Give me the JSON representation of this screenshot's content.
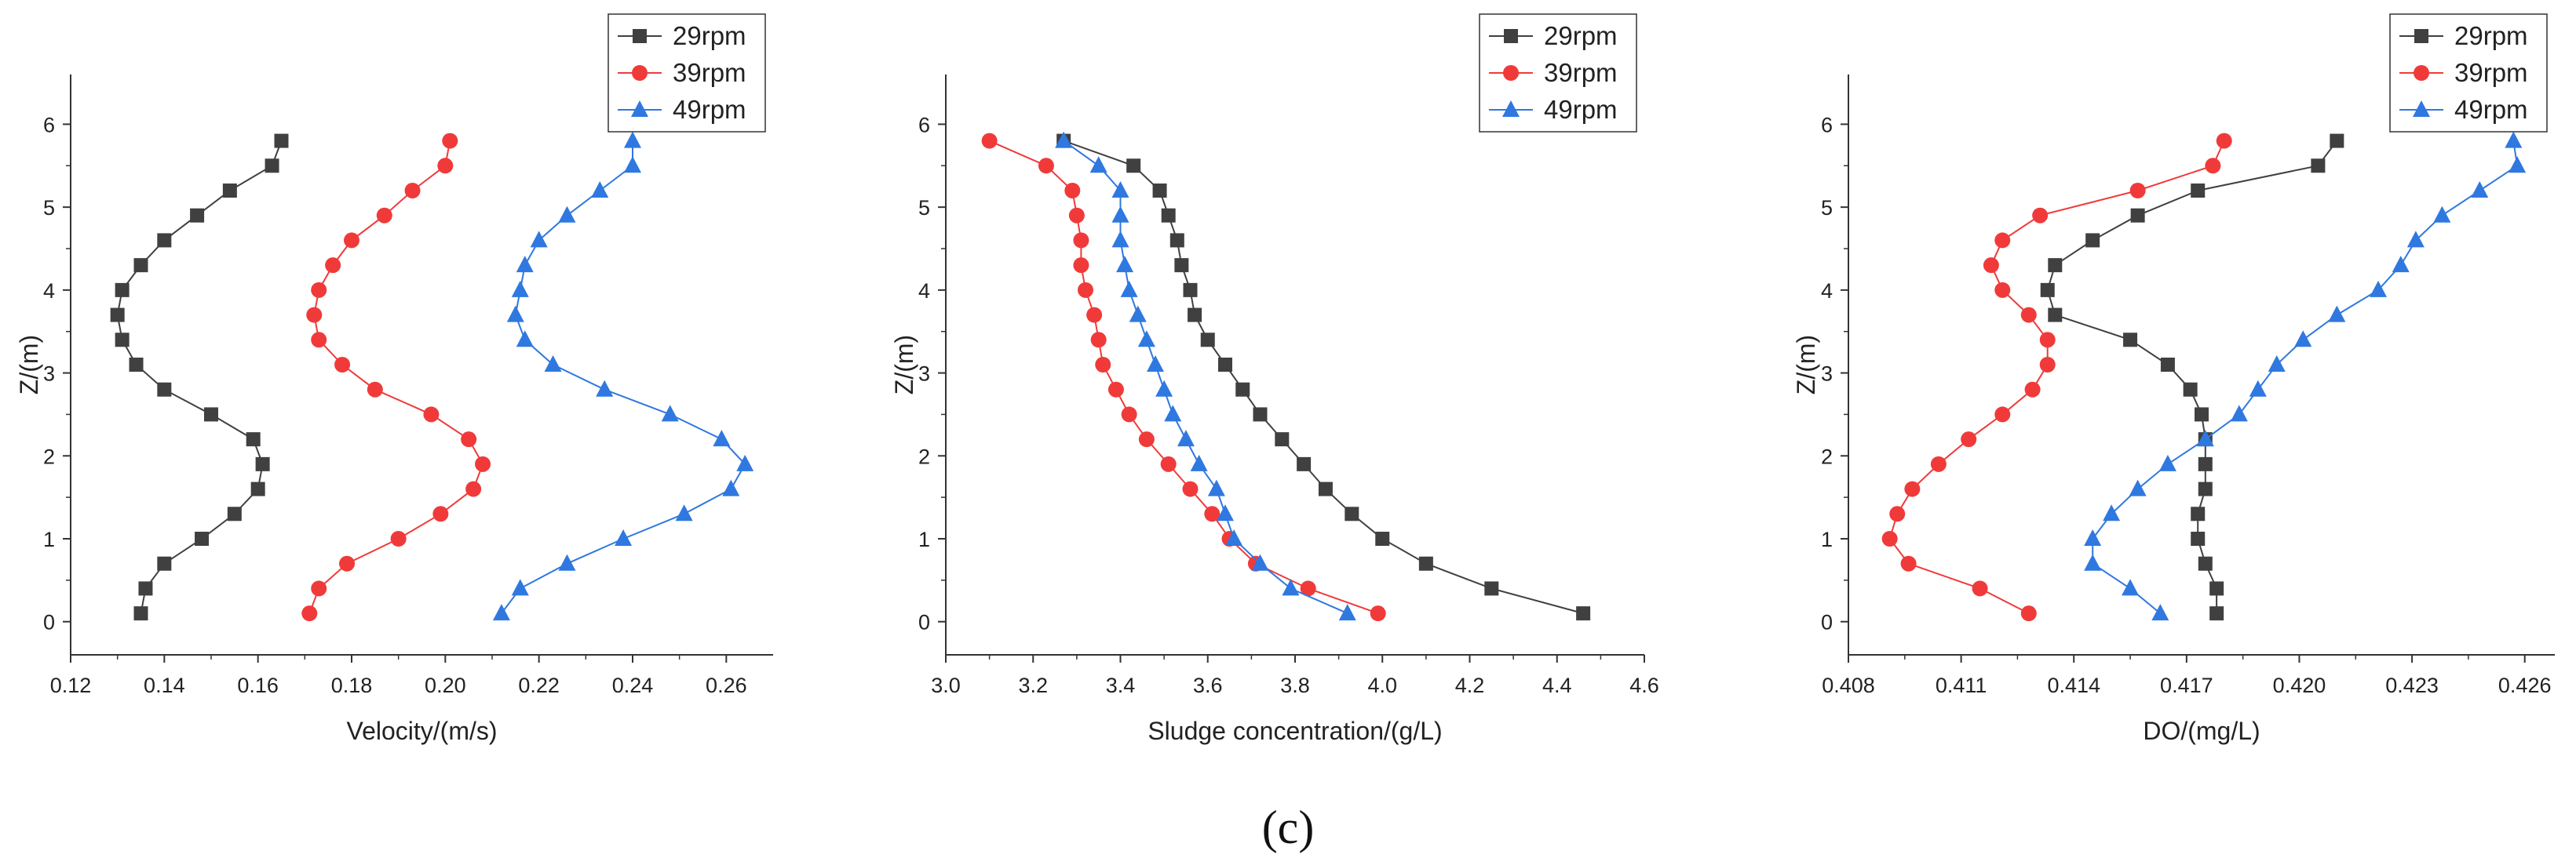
{
  "caption": "(c)",
  "series_names": [
    "29rpm",
    "39rpm",
    "49rpm"
  ],
  "series_colors": [
    "#404040",
    "#f03a3a",
    "#2f78e0"
  ],
  "series_markers": [
    "square",
    "circle",
    "triangle"
  ],
  "chart_data": [
    {
      "type": "line",
      "xlabel": "Velocity/(m/s)",
      "ylabel": "Z/(m)",
      "xlim": [
        0.12,
        0.27
      ],
      "ylim": [
        -0.4,
        6.6
      ],
      "xticks": [
        "0.12",
        "0.14",
        "0.16",
        "0.18",
        "0.20",
        "0.22",
        "0.24",
        "0.26"
      ],
      "xtick_values": [
        0.12,
        0.14,
        0.16,
        0.18,
        0.2,
        0.22,
        0.24,
        0.26
      ],
      "yticks": [
        "0",
        "1",
        "2",
        "3",
        "4",
        "5",
        "6"
      ],
      "yticks_values": [
        0,
        1,
        2,
        3,
        4,
        5,
        6
      ],
      "legend_position": "top-right",
      "series": [
        {
          "name": "29rpm",
          "y": [
            0.1,
            0.4,
            0.7,
            1.0,
            1.3,
            1.6,
            1.9,
            2.2,
            2.5,
            2.8,
            3.1,
            3.4,
            3.7,
            4.0,
            4.3,
            4.6,
            4.9,
            5.2,
            5.5,
            5.8
          ],
          "x": [
            0.135,
            0.136,
            0.14,
            0.148,
            0.155,
            0.16,
            0.161,
            0.159,
            0.15,
            0.14,
            0.134,
            0.131,
            0.13,
            0.131,
            0.135,
            0.14,
            0.147,
            0.154,
            0.163,
            0.165
          ]
        },
        {
          "name": "39rpm",
          "y": [
            0.1,
            0.4,
            0.7,
            1.0,
            1.3,
            1.6,
            1.9,
            2.2,
            2.5,
            2.8,
            3.1,
            3.4,
            3.7,
            4.0,
            4.3,
            4.6,
            4.9,
            5.2,
            5.5,
            5.8
          ],
          "x": [
            0.171,
            0.173,
            0.179,
            0.19,
            0.199,
            0.206,
            0.208,
            0.205,
            0.197,
            0.185,
            0.178,
            0.173,
            0.172,
            0.173,
            0.176,
            0.18,
            0.187,
            0.193,
            0.2,
            0.201
          ]
        },
        {
          "name": "49rpm",
          "y": [
            0.1,
            0.4,
            0.7,
            1.0,
            1.3,
            1.6,
            1.9,
            2.2,
            2.5,
            2.8,
            3.1,
            3.4,
            3.7,
            4.0,
            4.3,
            4.6,
            4.9,
            5.2,
            5.5,
            5.8
          ],
          "x": [
            0.212,
            0.216,
            0.226,
            0.238,
            0.251,
            0.261,
            0.264,
            0.259,
            0.248,
            0.234,
            0.223,
            0.217,
            0.215,
            0.216,
            0.217,
            0.22,
            0.226,
            0.233,
            0.24,
            0.24
          ]
        }
      ]
    },
    {
      "type": "line",
      "xlabel": "Sludge concentration/(g/L)",
      "ylabel": "Z/(m)",
      "xlim": [
        3.0,
        4.6
      ],
      "ylim": [
        -0.4,
        6.6
      ],
      "xticks": [
        "3.0",
        "3.2",
        "3.4",
        "3.6",
        "3.8",
        "4.0",
        "4.2",
        "4.4",
        "4.6"
      ],
      "xtick_values": [
        3.0,
        3.2,
        3.4,
        3.6,
        3.8,
        4.0,
        4.2,
        4.4,
        4.6
      ],
      "yticks": [
        "0",
        "1",
        "2",
        "3",
        "4",
        "5",
        "6"
      ],
      "yticks_values": [
        0,
        1,
        2,
        3,
        4,
        5,
        6
      ],
      "legend_position": "top-right",
      "series": [
        {
          "name": "29rpm",
          "y": [
            0.1,
            0.4,
            0.7,
            1.0,
            1.3,
            1.6,
            1.9,
            2.2,
            2.5,
            2.8,
            3.1,
            3.4,
            3.7,
            4.0,
            4.3,
            4.6,
            4.9,
            5.2,
            5.5,
            5.8
          ],
          "x": [
            4.46,
            4.25,
            4.1,
            4.0,
            3.93,
            3.87,
            3.82,
            3.77,
            3.72,
            3.68,
            3.64,
            3.6,
            3.57,
            3.56,
            3.54,
            3.53,
            3.51,
            3.49,
            3.43,
            3.27
          ]
        },
        {
          "name": "39rpm",
          "y": [
            0.1,
            0.4,
            0.7,
            1.0,
            1.3,
            1.6,
            1.9,
            2.2,
            2.5,
            2.8,
            3.1,
            3.4,
            3.7,
            4.0,
            4.3,
            4.6,
            4.9,
            5.2,
            5.5,
            5.8
          ],
          "x": [
            3.99,
            3.83,
            3.71,
            3.65,
            3.61,
            3.56,
            3.51,
            3.46,
            3.42,
            3.39,
            3.36,
            3.35,
            3.34,
            3.32,
            3.31,
            3.31,
            3.3,
            3.29,
            3.23,
            3.1
          ]
        },
        {
          "name": "49rpm",
          "y": [
            0.1,
            0.4,
            0.7,
            1.0,
            1.3,
            1.6,
            1.9,
            2.2,
            2.5,
            2.8,
            3.1,
            3.4,
            3.7,
            4.0,
            4.3,
            4.6,
            4.9,
            5.2,
            5.5,
            5.8
          ],
          "x": [
            3.92,
            3.79,
            3.72,
            3.66,
            3.64,
            3.62,
            3.58,
            3.55,
            3.52,
            3.5,
            3.48,
            3.46,
            3.44,
            3.42,
            3.41,
            3.4,
            3.4,
            3.4,
            3.35,
            3.27
          ]
        }
      ]
    },
    {
      "type": "line",
      "xlabel": "DO/(mg/L)",
      "ylabel": "Z/(m)",
      "xlim": [
        0.408,
        0.4268
      ],
      "ylim": [
        -0.4,
        6.6
      ],
      "xticks": [
        "0.408",
        "0.411",
        "0.414",
        "0.417",
        "0.420",
        "0.423",
        "0.426"
      ],
      "xtick_values": [
        0.408,
        0.411,
        0.414,
        0.417,
        0.42,
        0.423,
        0.426
      ],
      "yticks": [
        "0",
        "1",
        "2",
        "3",
        "4",
        "5",
        "6"
      ],
      "yticks_values": [
        0,
        1,
        2,
        3,
        4,
        5,
        6
      ],
      "legend_position": "top-right",
      "series": [
        {
          "name": "29rpm",
          "y": [
            0.1,
            0.4,
            0.7,
            1.0,
            1.3,
            1.6,
            1.9,
            2.2,
            2.5,
            2.8,
            3.1,
            3.4,
            3.7,
            4.0,
            4.3,
            4.6,
            4.9,
            5.2,
            5.5,
            5.8
          ],
          "x": [
            0.4178,
            0.4178,
            0.4175,
            0.4173,
            0.4173,
            0.4175,
            0.4175,
            0.4175,
            0.4174,
            0.4171,
            0.4165,
            0.4155,
            0.4135,
            0.4133,
            0.4135,
            0.4145,
            0.4157,
            0.4173,
            0.4205,
            0.421
          ]
        },
        {
          "name": "39rpm",
          "y": [
            0.1,
            0.4,
            0.7,
            1.0,
            1.3,
            1.6,
            1.9,
            2.2,
            2.5,
            2.8,
            3.1,
            3.4,
            3.7,
            4.0,
            4.3,
            4.6,
            4.9,
            5.2,
            5.5,
            5.8
          ],
          "x": [
            0.4128,
            0.4115,
            0.4096,
            0.4091,
            0.4093,
            0.4097,
            0.4104,
            0.4112,
            0.4121,
            0.4129,
            0.4133,
            0.4133,
            0.4128,
            0.4121,
            0.4118,
            0.4121,
            0.4131,
            0.4157,
            0.4177,
            0.418
          ]
        },
        {
          "name": "49rpm",
          "y": [
            0.1,
            0.4,
            0.7,
            1.0,
            1.3,
            1.6,
            1.9,
            2.2,
            2.5,
            2.8,
            3.1,
            3.4,
            3.7,
            4.0,
            4.3,
            4.6,
            4.9,
            5.2,
            5.5,
            5.8
          ],
          "x": [
            0.4163,
            0.4155,
            0.4145,
            0.4145,
            0.415,
            0.4157,
            0.4165,
            0.4175,
            0.4184,
            0.4189,
            0.4194,
            0.4201,
            0.421,
            0.4221,
            0.4227,
            0.4231,
            0.4238,
            0.4248,
            0.4258,
            0.4257
          ]
        }
      ]
    }
  ]
}
